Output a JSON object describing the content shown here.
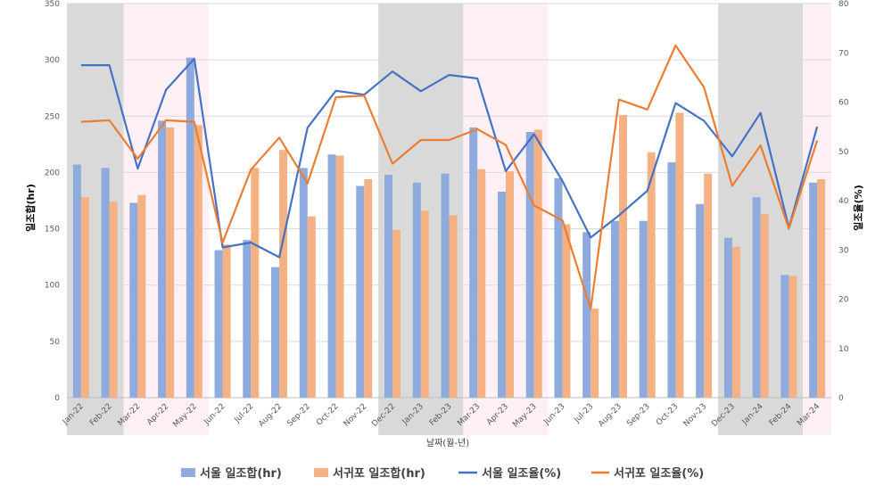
{
  "chart_data": {
    "type": "bar",
    "title": "",
    "xlabel": "날짜(월-년)",
    "ylabel": "일조합(hr)",
    "y2label": "일조율(%)",
    "ylim": [
      0,
      350
    ],
    "y2lim": [
      0,
      80
    ],
    "yticks": [
      "0",
      "50",
      "100",
      "150",
      "200",
      "250",
      "300",
      "350"
    ],
    "y2ticks": [
      "0",
      "10",
      "20",
      "30",
      "40",
      "50",
      "60",
      "70",
      "80"
    ],
    "grid": true,
    "legend_position": "bottom",
    "categories": [
      "Jan-22",
      "Feb-22",
      "Mar-22",
      "Apr-22",
      "May-22",
      "Jun-22",
      "Jul-22",
      "Aug-22",
      "Sep-22",
      "Oct-22",
      "Nov-22",
      "Dec-22",
      "Jan-23",
      "Feb-23",
      "Mar-23",
      "Apr-23",
      "May-23",
      "Jun-23",
      "Jul-23",
      "Aug-23",
      "Sep-23",
      "Oct-23",
      "Nov-23",
      "Dec-23",
      "Jan-24",
      "Feb-24",
      "Mar-24"
    ],
    "series": [
      {
        "name": "서울 일조합(hr)",
        "kind": "bar",
        "axis": "left",
        "color": "#8faadc",
        "values": [
          207,
          204,
          173,
          246,
          302,
          131,
          140,
          116,
          204,
          216,
          188,
          198,
          191,
          199,
          240,
          183,
          236,
          195,
          147,
          157,
          157,
          209,
          172,
          142,
          178,
          109,
          191
        ]
      },
      {
        "name": "서귀포 일조합(hr)",
        "kind": "bar",
        "axis": "left",
        "color": "#f4b183",
        "values": [
          178,
          174,
          180,
          240,
          242,
          136,
          204,
          220,
          161,
          215,
          194,
          149,
          166,
          162,
          203,
          201,
          238,
          154,
          79,
          251,
          218,
          253,
          199,
          134,
          163,
          108,
          194
        ]
      },
      {
        "name": "서울 일조율(%)",
        "kind": "line",
        "axis": "right",
        "color": "#4472c4",
        "values": [
          67.5,
          67.5,
          46.5,
          62.5,
          68.8,
          30.5,
          31.5,
          28.5,
          54.8,
          62.3,
          61.5,
          66.2,
          62.2,
          65.5,
          64.8,
          46.0,
          53.5,
          44.0,
          32.5,
          37.0,
          42.0,
          59.8,
          56.2,
          49.0,
          57.8,
          34.5,
          55.0
        ]
      },
      {
        "name": "서귀포 일조율(%)",
        "kind": "line",
        "axis": "right",
        "color": "#ed7d31",
        "values": [
          56.0,
          56.3,
          48.5,
          56.3,
          56.0,
          31.5,
          46.3,
          52.8,
          43.5,
          61.0,
          61.3,
          47.5,
          52.3,
          52.3,
          54.5,
          51.3,
          39.0,
          36.0,
          18.0,
          60.5,
          58.5,
          71.5,
          63.0,
          43.0,
          51.2,
          34.3,
          52.2
        ]
      }
    ],
    "shaded_periods": [
      {
        "from": "Jan-22",
        "to": "Feb-22",
        "color": "#d9d9d9"
      },
      {
        "from": "Mar-22",
        "to": "May-22",
        "color": "#fff0f5"
      },
      {
        "from": "Dec-22",
        "to": "Feb-23",
        "color": "#d9d9d9"
      },
      {
        "from": "Mar-23",
        "to": "May-23",
        "color": "#fff0f5"
      },
      {
        "from": "Dec-23",
        "to": "Feb-24",
        "color": "#d9d9d9"
      },
      {
        "from": "Mar-24",
        "to": "Mar-24",
        "color": "#fff0f5"
      }
    ]
  }
}
